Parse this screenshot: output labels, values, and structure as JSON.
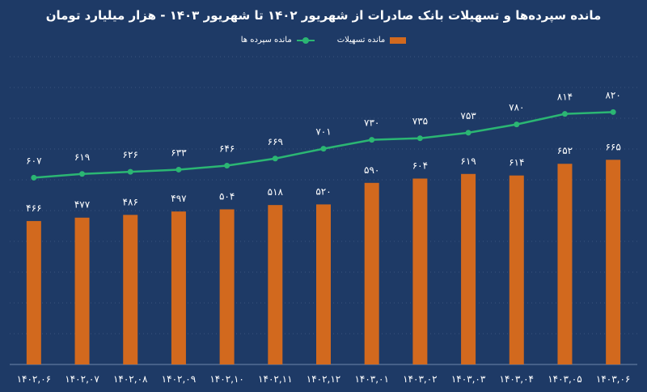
{
  "colors": {
    "background": "#1e3a66",
    "bar": "#d2691e",
    "line": "#2bb673",
    "grid": "#6f86ab",
    "text": "#ffffff"
  },
  "chart_data": {
    "type": "bar",
    "title": "مانده سپرده‌ها و تسهیلات بانک صادرات از شهریور ۱۴۰۲ تا شهریور ۱۴۰۳ - هزار میلیارد تومان",
    "xlabel": "",
    "ylabel": "",
    "ylim": [
      0,
      1000
    ],
    "grid": true,
    "legend_position": "top",
    "categories": [
      "۱۴۰۲,۰۶",
      "۱۴۰۲,۰۷",
      "۱۴۰۲,۰۸",
      "۱۴۰۲,۰۹",
      "۱۴۰۲,۱۰",
      "۱۴۰۲,۱۱",
      "۱۴۰۲,۱۲",
      "۱۴۰۳,۰۱",
      "۱۴۰۳,۰۲",
      "۱۴۰۳,۰۳",
      "۱۴۰۳,۰۴",
      "۱۴۰۳,۰۵",
      "۱۴۰۳,۰۶"
    ],
    "series": [
      {
        "name": "مانده تسهیلات",
        "kind": "bar",
        "values": [
          466,
          477,
          486,
          497,
          504,
          518,
          520,
          590,
          604,
          619,
          614,
          652,
          665
        ],
        "labels": [
          "۴۶۶",
          "۴۷۷",
          "۴۸۶",
          "۴۹۷",
          "۵۰۴",
          "۵۱۸",
          "۵۲۰",
          "۵۹۰",
          "۶۰۴",
          "۶۱۹",
          "۶۱۴",
          "۶۵۲",
          "۶۶۵"
        ]
      },
      {
        "name": "مانده سپرده ها",
        "kind": "line",
        "values": [
          607,
          619,
          626,
          633,
          646,
          669,
          701,
          730,
          735,
          753,
          780,
          814,
          820
        ],
        "labels": [
          "۶۰۷",
          "۶۱۹",
          "۶۲۶",
          "۶۳۳",
          "۶۴۶",
          "۶۶۹",
          "۷۰۱",
          "۷۳۰",
          "۷۳۵",
          "۷۵۳",
          "۷۸۰",
          "۸۱۴",
          "۸۲۰"
        ]
      }
    ]
  }
}
